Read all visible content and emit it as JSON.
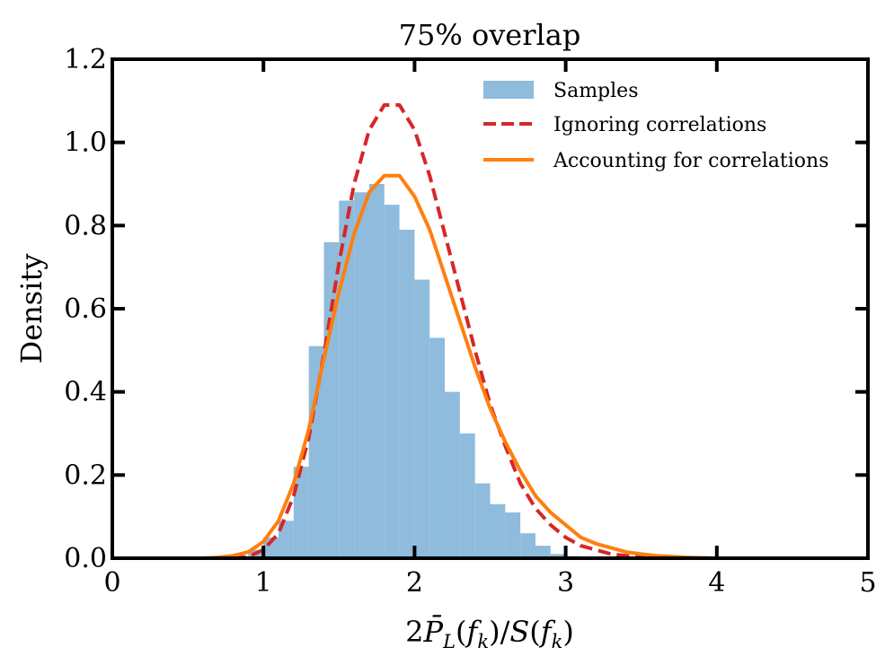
{
  "chart_data": {
    "type": "histogram+line",
    "title": "75% overlap",
    "xlabel": "2P̄L(fk)/S(fk)",
    "ylabel": "Density",
    "xlim": [
      0,
      5
    ],
    "ylim": [
      0,
      1.2
    ],
    "xticks": [
      0,
      1,
      2,
      3,
      4,
      5
    ],
    "yticks": [
      0.0,
      0.2,
      0.4,
      0.6,
      0.8,
      1.0,
      1.2
    ],
    "xtick_labels": [
      "0",
      "1",
      "2",
      "3",
      "4",
      "5"
    ],
    "ytick_labels": [
      "0.0",
      "0.2",
      "0.4",
      "0.6",
      "0.8",
      "1.0",
      "1.2"
    ],
    "legend_position": "top-right",
    "histogram": {
      "name": "Samples",
      "color": "#8fbbdc",
      "bin_edges": [
        0.7,
        0.8,
        0.9,
        1.0,
        1.1,
        1.2,
        1.3,
        1.4,
        1.5,
        1.6,
        1.7,
        1.8,
        1.9,
        2.0,
        2.1,
        2.2,
        2.3,
        2.4,
        2.5,
        2.6,
        2.7,
        2.8,
        2.9,
        3.0,
        3.1,
        3.2,
        3.3,
        3.4,
        3.5
      ],
      "density": [
        0.0,
        0.005,
        0.02,
        0.05,
        0.09,
        0.22,
        0.51,
        0.76,
        0.86,
        0.88,
        0.9,
        0.85,
        0.79,
        0.67,
        0.53,
        0.4,
        0.3,
        0.18,
        0.13,
        0.11,
        0.06,
        0.03,
        0.01,
        0.005,
        0.002,
        0.0,
        0.0,
        0.0
      ]
    },
    "series": [
      {
        "name": "Ignoring correlations",
        "color": "#d62728",
        "style": "dashed",
        "x": [
          0.8,
          0.9,
          1.0,
          1.1,
          1.2,
          1.3,
          1.4,
          1.5,
          1.6,
          1.7,
          1.8,
          1.9,
          2.0,
          2.1,
          2.2,
          2.3,
          2.4,
          2.5,
          2.6,
          2.7,
          2.8,
          2.9,
          3.0,
          3.1,
          3.2,
          3.3,
          3.4,
          3.5,
          3.6,
          3.8,
          4.0
        ],
        "y": [
          0.0,
          0.004,
          0.02,
          0.06,
          0.15,
          0.29,
          0.49,
          0.71,
          0.9,
          1.03,
          1.09,
          1.09,
          1.03,
          0.92,
          0.78,
          0.64,
          0.5,
          0.37,
          0.27,
          0.18,
          0.12,
          0.08,
          0.05,
          0.03,
          0.02,
          0.01,
          0.006,
          0.003,
          0.002,
          0.0,
          0.0
        ]
      },
      {
        "name": "Accounting for correlations",
        "color": "#ff7f0e",
        "style": "solid",
        "x": [
          0.6,
          0.7,
          0.8,
          0.9,
          1.0,
          1.1,
          1.2,
          1.3,
          1.4,
          1.5,
          1.6,
          1.7,
          1.8,
          1.9,
          2.0,
          2.1,
          2.2,
          2.3,
          2.4,
          2.5,
          2.6,
          2.7,
          2.8,
          2.9,
          3.0,
          3.1,
          3.2,
          3.3,
          3.4,
          3.5,
          3.6,
          3.8,
          4.0
        ],
        "y": [
          0.0,
          0.002,
          0.006,
          0.015,
          0.04,
          0.09,
          0.18,
          0.31,
          0.48,
          0.64,
          0.78,
          0.88,
          0.92,
          0.92,
          0.87,
          0.79,
          0.68,
          0.57,
          0.46,
          0.36,
          0.28,
          0.21,
          0.15,
          0.11,
          0.08,
          0.05,
          0.035,
          0.025,
          0.015,
          0.01,
          0.006,
          0.002,
          0.0
        ]
      }
    ]
  }
}
